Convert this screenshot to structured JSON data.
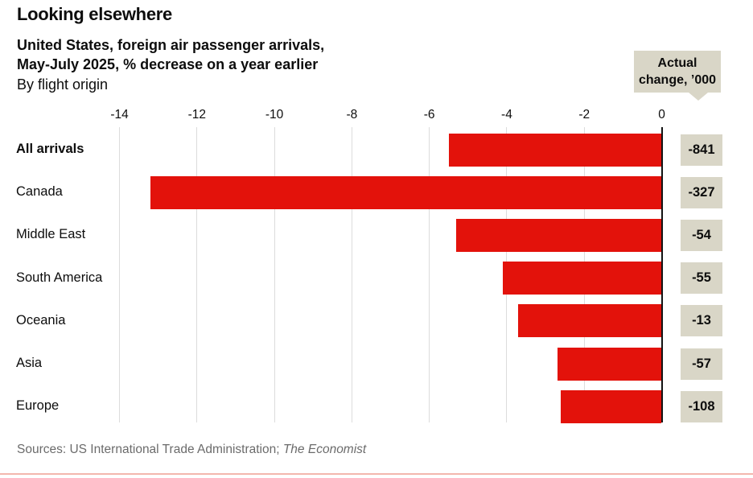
{
  "header": {
    "title": "Looking elsewhere",
    "subtitle_line1": "United States, foreign air passenger arrivals,",
    "subtitle_line2": "May-July 2025, % decrease on a year earlier",
    "byline": "By flight origin"
  },
  "callout": {
    "line1": "Actual",
    "line2": "change, ’000"
  },
  "chart_data": {
    "type": "bar",
    "orientation": "horizontal",
    "title": "Looking elsewhere",
    "subtitle": "United States, foreign air passenger arrivals, May-July 2025, % decrease on a year earlier",
    "group_label": "By flight origin",
    "categories": [
      "All arrivals",
      "Canada",
      "Middle East",
      "South America",
      "Oceania",
      "Asia",
      "Europe"
    ],
    "values_pct_decrease": [
      -5.5,
      -13.2,
      -5.3,
      -4.1,
      -3.7,
      -2.7,
      -2.6
    ],
    "actual_change_thousands": [
      -841,
      -327,
      -54,
      -55,
      -13,
      -57,
      -108
    ],
    "emphasized_categories": [
      "All arrivals"
    ],
    "axis_ticks": [
      -14,
      -12,
      -10,
      -8,
      -6,
      -4,
      -2,
      0
    ],
    "xlim": [
      -14,
      0
    ],
    "grid": true,
    "legend": "none",
    "right_column_header": "Actual change, ’000"
  },
  "source": {
    "prefix": "Sources: US International Trade Administration; ",
    "italic": "The Economist"
  },
  "colors": {
    "bar": "#e3120b",
    "badge_bg": "#d9d6c7",
    "grid": "#dcdcdc",
    "zero_line": "#121212",
    "source_text": "#6b6b6b",
    "bottom_rule": "#f3b7ae"
  }
}
